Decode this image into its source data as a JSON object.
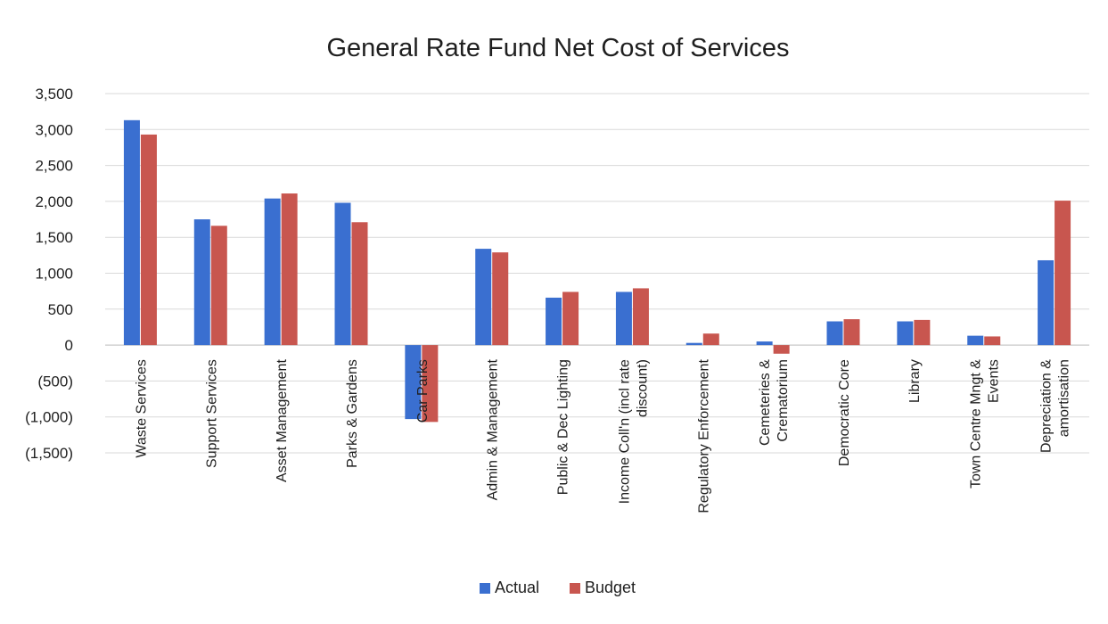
{
  "chart_data": {
    "type": "bar",
    "title": "General Rate Fund Net Cost of Services",
    "xlabel": "",
    "ylabel": "",
    "ylim": [
      -1500,
      3500
    ],
    "yticks": [
      3500,
      3000,
      2500,
      2000,
      1500,
      1000,
      500,
      0,
      -500,
      -1000,
      -1500
    ],
    "ytick_labels": [
      "3,500",
      "3,000",
      "2,500",
      "2,000",
      "1,500",
      "1,000",
      "500",
      "0",
      "(500)",
      "(1,000)",
      "(1,500)"
    ],
    "grid": true,
    "legend_position": "bottom",
    "categories": [
      "Waste Services",
      "Support Services",
      "Asset Management",
      "Parks & Gardens",
      "Car Parks",
      "Admin & Management",
      "Public & Dec Lighting",
      "Income Coll'n (incl rate discount)",
      "Regulatory Enforcement",
      "Cemeteries & Crematorium",
      "Democratic Core",
      "Library",
      "Town Centre Mngt & Events",
      "Depreciation & amortisation"
    ],
    "category_label_lines": [
      [
        "Waste Services"
      ],
      [
        "Support Services"
      ],
      [
        "Asset Management"
      ],
      [
        "Parks & Gardens"
      ],
      [
        "Car Parks"
      ],
      [
        "Admin & Management"
      ],
      [
        "Public & Dec Lighting"
      ],
      [
        "Income Coll'n (incl rate",
        "discount)"
      ],
      [
        "Regulatory Enforcement"
      ],
      [
        "Cemeteries &",
        "Crematorium"
      ],
      [
        "Democratic Core"
      ],
      [
        "Library"
      ],
      [
        "Town Centre Mngt &",
        "Events"
      ],
      [
        "Depreciation &",
        "amortisation"
      ]
    ],
    "series": [
      {
        "name": "Actual",
        "color": "#3a6fd0",
        "values": [
          3130,
          1750,
          2040,
          1980,
          -1030,
          1340,
          660,
          740,
          30,
          50,
          330,
          330,
          130,
          1180
        ]
      },
      {
        "name": "Budget",
        "color": "#c8564f",
        "values": [
          2930,
          1660,
          2110,
          1710,
          -1070,
          1290,
          740,
          790,
          160,
          -120,
          360,
          350,
          120,
          2010
        ]
      }
    ]
  }
}
